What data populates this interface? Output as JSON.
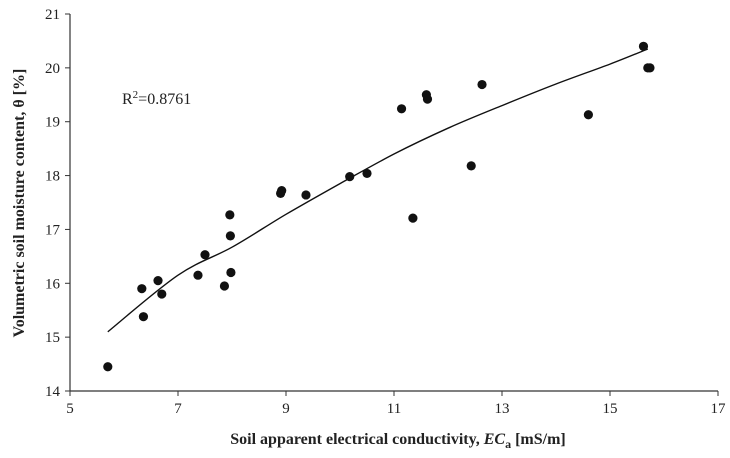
{
  "chart_data": {
    "type": "scatter",
    "xlabel_main": "Soil apparent electrical conductivity, ",
    "xlabel_var": "EC",
    "xlabel_sub": "a",
    "xlabel_unit": " [mS/m]",
    "ylabel": "Volumetric soil moisture content, θ [%]",
    "xlim": [
      5,
      17
    ],
    "ylim": [
      14,
      21
    ],
    "xticks": [
      5,
      7,
      9,
      11,
      13,
      15,
      17
    ],
    "yticks": [
      14,
      15,
      16,
      17,
      18,
      19,
      20,
      21
    ],
    "grid": false,
    "legend": "none",
    "annotation_base": "R",
    "annotation_sup": "2",
    "annotation_rest": "=0.8761",
    "trendline": {
      "type": "power",
      "points": [
        [
          5.7,
          15.1
        ],
        [
          7.0,
          16.15
        ],
        [
          8.0,
          16.67
        ],
        [
          9.0,
          17.28
        ],
        [
          10.0,
          17.85
        ],
        [
          11.0,
          18.4
        ],
        [
          12.0,
          18.88
        ],
        [
          13.0,
          19.3
        ],
        [
          14.0,
          19.7
        ],
        [
          15.0,
          20.07
        ],
        [
          15.7,
          20.35
        ]
      ]
    },
    "points": [
      [
        5.7,
        14.45
      ],
      [
        6.33,
        15.9
      ],
      [
        6.36,
        15.38
      ],
      [
        6.63,
        16.05
      ],
      [
        6.7,
        15.8
      ],
      [
        7.37,
        16.15
      ],
      [
        7.5,
        16.53
      ],
      [
        7.86,
        15.95
      ],
      [
        7.96,
        17.27
      ],
      [
        7.97,
        16.88
      ],
      [
        7.98,
        16.2
      ],
      [
        8.9,
        17.67
      ],
      [
        8.92,
        17.72
      ],
      [
        9.37,
        17.64
      ],
      [
        10.18,
        17.98
      ],
      [
        10.5,
        18.04
      ],
      [
        11.14,
        19.24
      ],
      [
        11.35,
        17.21
      ],
      [
        11.6,
        19.5
      ],
      [
        11.62,
        19.42
      ],
      [
        12.43,
        18.18
      ],
      [
        12.63,
        19.69
      ],
      [
        14.6,
        19.13
      ],
      [
        15.62,
        20.4
      ],
      [
        15.7,
        20.0
      ],
      [
        15.74,
        20.0
      ]
    ],
    "marker_color": "#111111",
    "line_color": "#111111",
    "axis_color": "#333333"
  }
}
